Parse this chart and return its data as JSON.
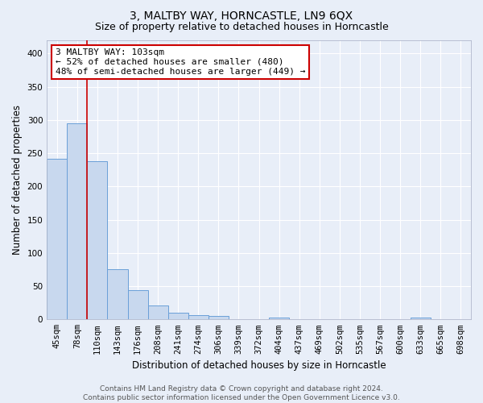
{
  "title": "3, MALTBY WAY, HORNCASTLE, LN9 6QX",
  "subtitle": "Size of property relative to detached houses in Horncastle",
  "xlabel": "Distribution of detached houses by size in Horncastle",
  "ylabel": "Number of detached properties",
  "categories": [
    "45sqm",
    "78sqm",
    "110sqm",
    "143sqm",
    "176sqm",
    "208sqm",
    "241sqm",
    "274sqm",
    "306sqm",
    "339sqm",
    "372sqm",
    "404sqm",
    "437sqm",
    "469sqm",
    "502sqm",
    "535sqm",
    "567sqm",
    "600sqm",
    "633sqm",
    "665sqm",
    "698sqm"
  ],
  "bar_heights": [
    242,
    295,
    238,
    75,
    44,
    21,
    10,
    6,
    5,
    0,
    0,
    3,
    0,
    0,
    0,
    0,
    0,
    0,
    3,
    0,
    0
  ],
  "bar_color": "#c8d8ee",
  "bar_edge_color": "#6a9fd8",
  "vline_pos": 1.5,
  "vline_color": "#cc0000",
  "annotation_text": "3 MALTBY WAY: 103sqm\n← 52% of detached houses are smaller (480)\n48% of semi-detached houses are larger (449) →",
  "annotation_box_facecolor": "#ffffff",
  "annotation_box_edgecolor": "#cc0000",
  "ylim": [
    0,
    420
  ],
  "yticks": [
    0,
    50,
    100,
    150,
    200,
    250,
    300,
    350,
    400
  ],
  "footnote": "Contains HM Land Registry data © Crown copyright and database right 2024.\nContains public sector information licensed under the Open Government Licence v3.0.",
  "background_color": "#e8eef8",
  "plot_bg_color": "#e8eef8",
  "grid_color": "#ffffff",
  "title_fontsize": 10,
  "subtitle_fontsize": 9,
  "axis_label_fontsize": 8.5,
  "tick_fontsize": 7.5,
  "annotation_fontsize": 8
}
